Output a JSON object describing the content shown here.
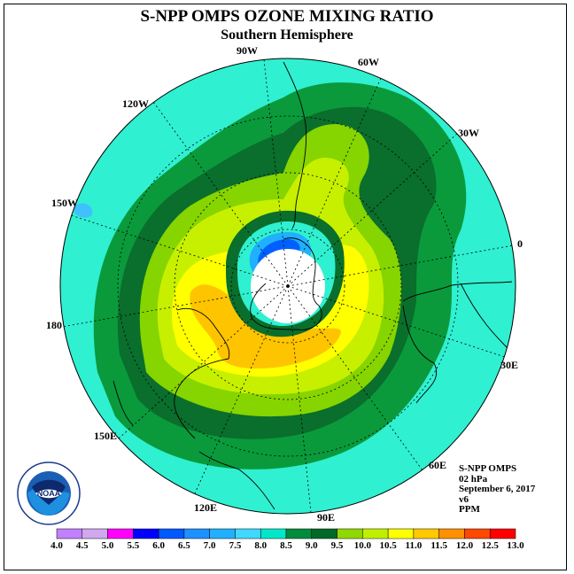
{
  "title": "S-NPP OMPS OZONE MIXING RATIO",
  "subtitle": "Southern Hemisphere",
  "longitude_labels": {
    "lon_90w": "90W",
    "lon_60w": "60W",
    "lon_30w": "30W",
    "lon_0": "0",
    "lon_30e": "30E",
    "lon_60e": "60E",
    "lon_90e": "90E",
    "lon_120e": "120E",
    "lon_150e": "150E",
    "lon_180": "180",
    "lon_150w": "150W",
    "lon_120w": "120W"
  },
  "info": {
    "instrument": "S-NPP OMPS",
    "level": "02 hPa",
    "date": "September 6, 2017",
    "version": "v6",
    "units": "PPM"
  },
  "logo_text": "NOAA",
  "colorbar": {
    "labels": [
      "4.0",
      "4.5",
      "5.0",
      "5.5",
      "6.0",
      "6.5",
      "7.0",
      "7.5",
      "8.0",
      "8.5",
      "9.0",
      "9.5",
      "10.0",
      "10.5",
      "11.0",
      "11.5",
      "12.0",
      "12.5",
      "13.0"
    ],
    "colors": [
      "#c080ff",
      "#d0a8f0",
      "#ff00ff",
      "#0000ff",
      "#0058ff",
      "#1e90ff",
      "#20b0ff",
      "#40d8ff",
      "#00e8c8",
      "#008c3c",
      "#006828",
      "#90d800",
      "#c0f000",
      "#ffff00",
      "#ffc800",
      "#ff9000",
      "#ff4800",
      "#ff0000",
      "#a05030"
    ]
  }
}
